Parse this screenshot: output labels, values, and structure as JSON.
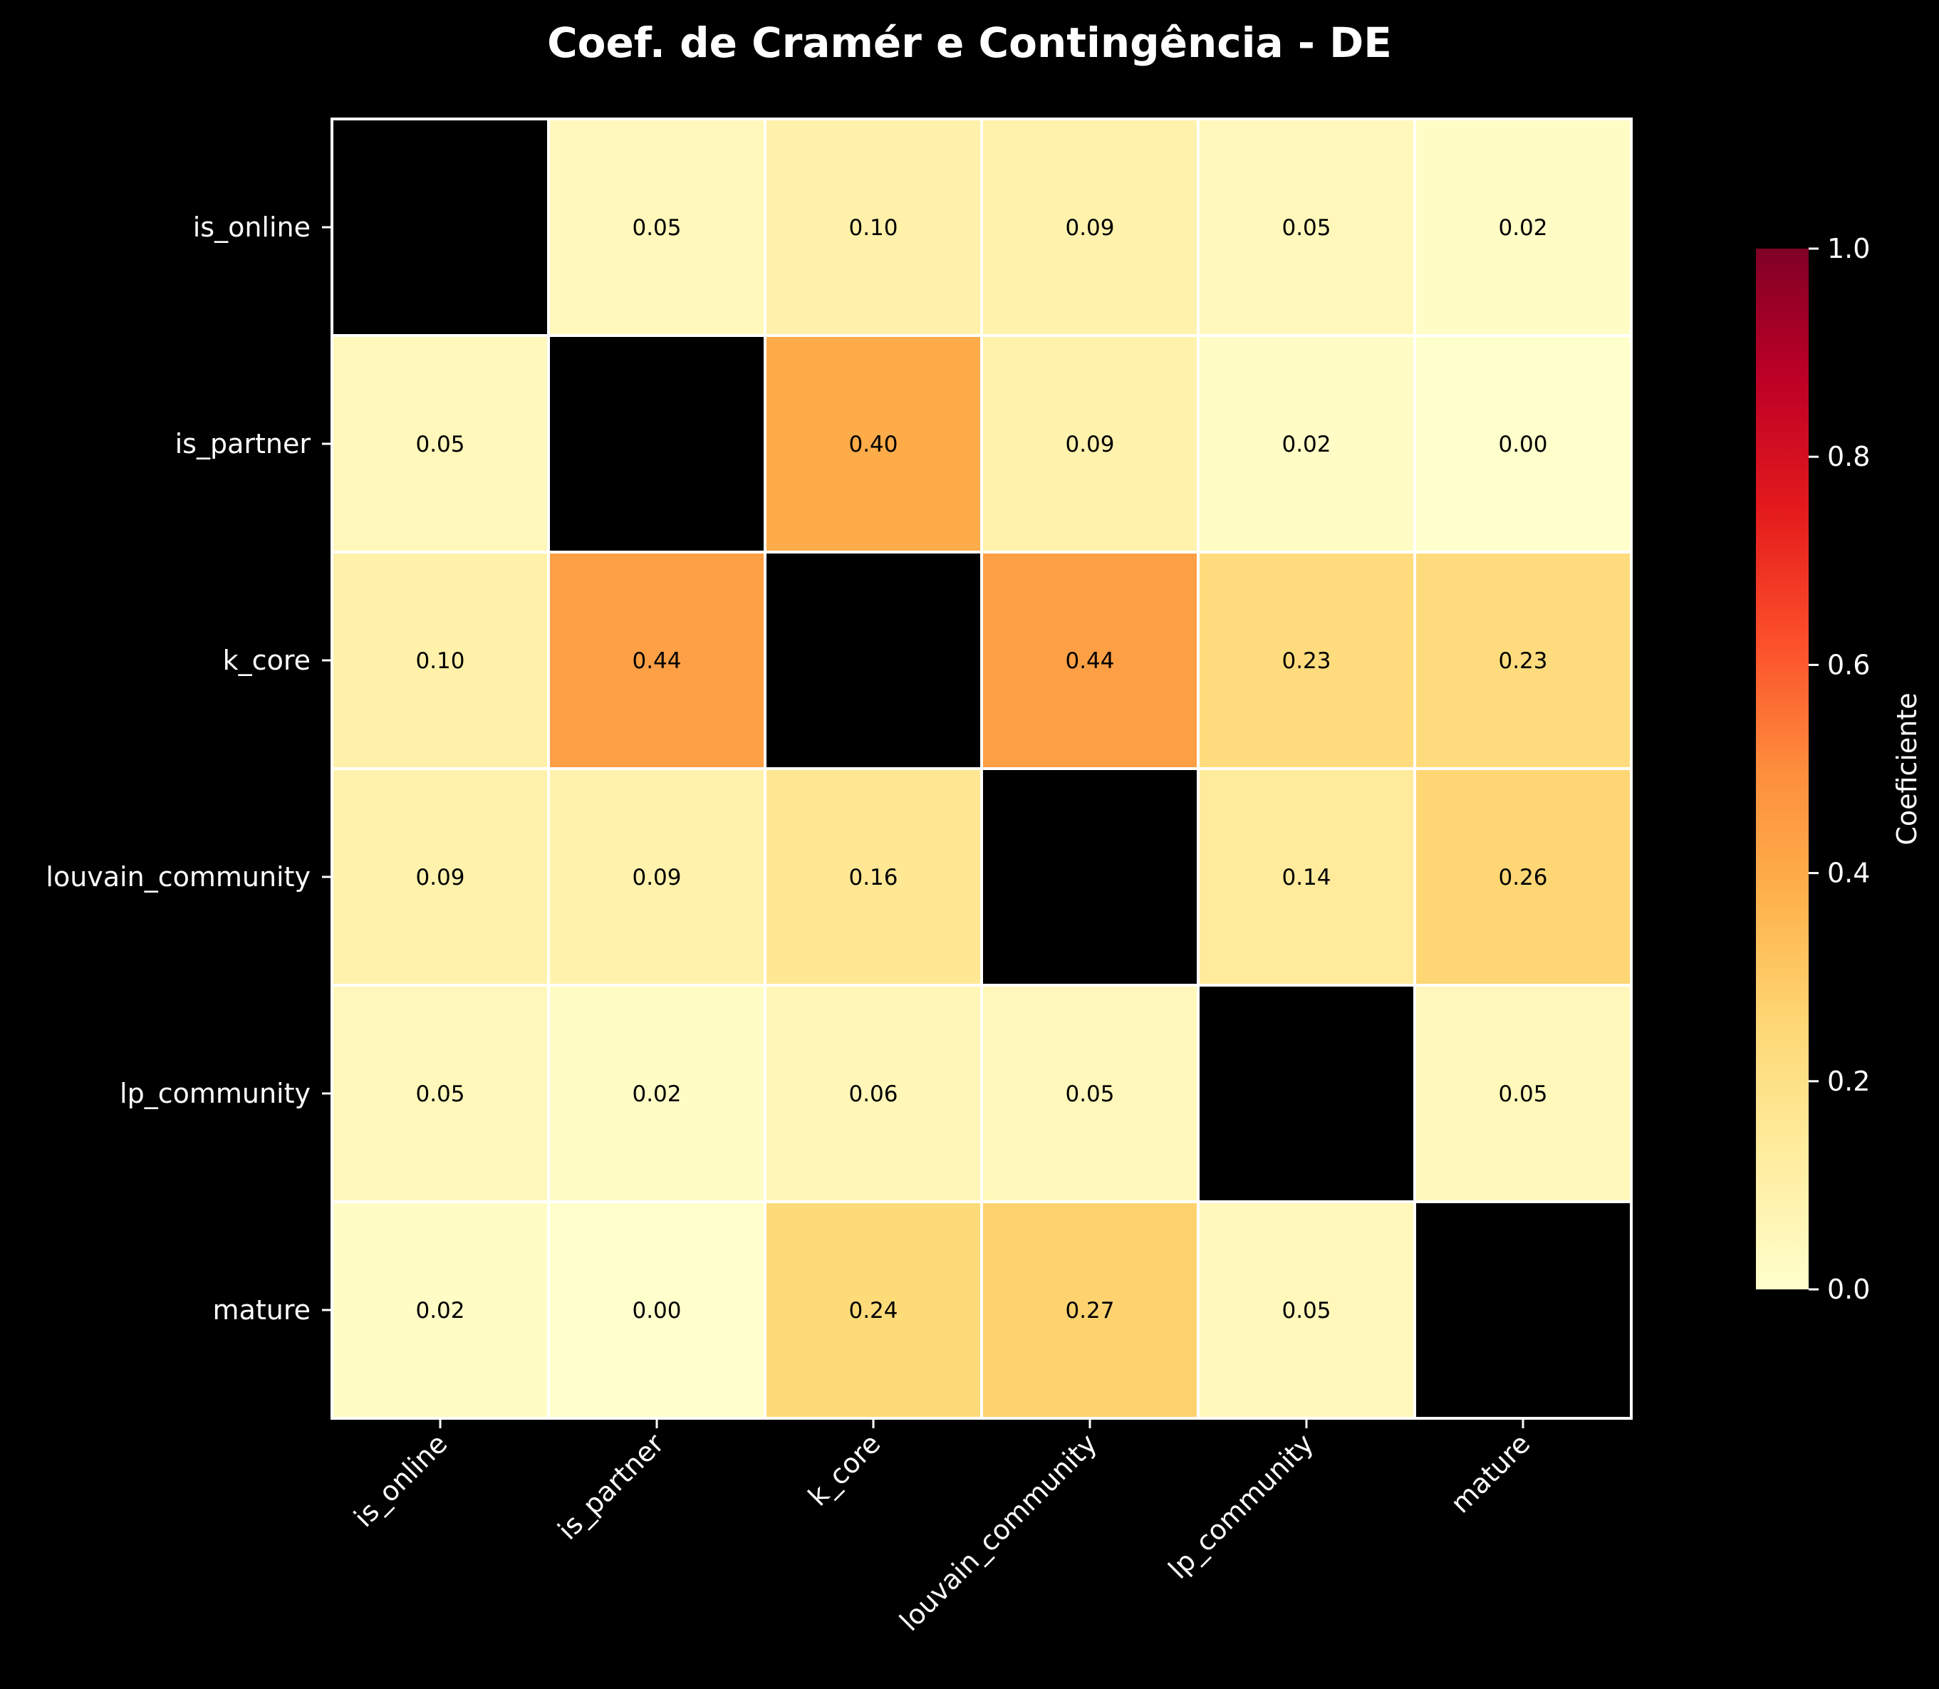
{
  "chart_data": {
    "type": "heatmap",
    "title": "Coef. de Cramér e Contingência - DE",
    "rows": [
      "is_online",
      "is_partner",
      "k_core",
      "louvain_community",
      "lp_community",
      "mature"
    ],
    "columns": [
      "is_online",
      "is_partner",
      "k_core",
      "louvain_community",
      "lp_community",
      "mature"
    ],
    "values": [
      [
        null,
        0.05,
        0.1,
        0.09,
        0.05,
        0.02
      ],
      [
        0.05,
        null,
        0.4,
        0.09,
        0.02,
        0.0
      ],
      [
        0.1,
        0.44,
        null,
        0.44,
        0.23,
        0.23
      ],
      [
        0.09,
        0.09,
        0.16,
        null,
        0.14,
        0.26
      ],
      [
        0.05,
        0.02,
        0.06,
        0.05,
        null,
        0.05
      ],
      [
        0.02,
        0.0,
        0.24,
        0.27,
        0.05,
        null
      ]
    ],
    "value_format": "0.00",
    "diagonal_color": "#000000",
    "colormap": "YlOrRd",
    "vmin": 0,
    "vmax": 1,
    "colorbar": {
      "label": "Coeficiente",
      "ticks": [
        "0.0",
        "0.2",
        "0.4",
        "0.6",
        "0.8",
        "1.0"
      ],
      "tick_values": [
        0,
        0.2,
        0.4,
        0.6,
        0.8,
        1.0
      ]
    },
    "background": "#000000",
    "grid_line_color": "#ffffff"
  }
}
